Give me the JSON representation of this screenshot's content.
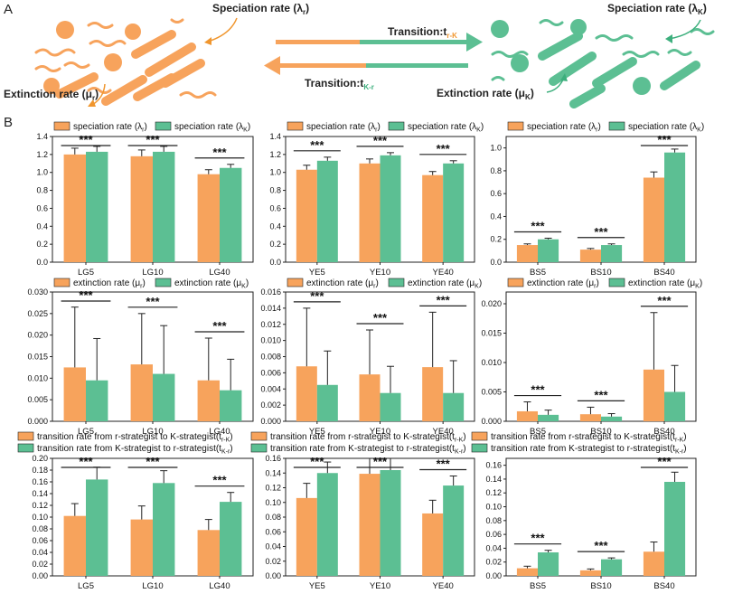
{
  "colors": {
    "r": "#f7a35c",
    "k": "#5cbf93",
    "r_text": "#f0962e",
    "k_text": "#3daf7d",
    "transition_text": "#8d8d8d"
  },
  "panel_a": {
    "letter": "A",
    "speciation_r": "Speciation rate (λ",
    "speciation_r_sub": "r",
    "speciation_k": "Speciation rate (λ",
    "speciation_k_sub": "K",
    "extinction_r": "Extinction rate (μ",
    "extinction_r_sub": "r",
    "extinction_k": "Extinction rate (μ",
    "extinction_k_sub": "K",
    "transition_rk": "Transition:t",
    "transition_rk_sub": "r-K",
    "transition_kr": "Transition:t",
    "transition_kr_sub": "K-r",
    "close_paren": ")"
  },
  "panel_b": {
    "letter": "B"
  },
  "legends": {
    "speciation": [
      {
        "text": "speciation rate (λ",
        "sub": "r",
        "tail": ")"
      },
      {
        "text": "speciation rate (λ",
        "sub": "K",
        "tail": ")"
      }
    ],
    "extinction": [
      {
        "text": "extinction rate (μ",
        "sub": "r",
        "tail": ")"
      },
      {
        "text": "extinction rate (μ",
        "sub": "K",
        "tail": ")"
      }
    ],
    "transition": [
      {
        "text": "transition rate from r-strategist to K-strategist(t",
        "sub": "r-K",
        "tail": ")"
      },
      {
        "text": "transition rate from K-strategist to r-strategist(t",
        "sub": "K-r",
        "tail": ")"
      }
    ]
  },
  "significance": "***",
  "chart_data": [
    {
      "type": "bar",
      "row": 0,
      "col": 0,
      "categories": [
        "LG5",
        "LG10",
        "LG40"
      ],
      "ylim": [
        0.0,
        1.4
      ],
      "yticks": [
        0.0,
        0.2,
        0.4,
        0.6,
        0.8,
        1.0,
        1.2,
        1.4
      ],
      "tick_decimals": 1,
      "series": [
        {
          "name": "speciation rate (λr)",
          "values": [
            1.2,
            1.18,
            0.98
          ],
          "errors": [
            0.07,
            0.07,
            0.05
          ]
        },
        {
          "name": "speciation rate (λK)",
          "values": [
            1.23,
            1.23,
            1.05
          ],
          "errors": [
            0.06,
            0.06,
            0.04
          ]
        }
      ]
    },
    {
      "type": "bar",
      "row": 0,
      "col": 1,
      "categories": [
        "YE5",
        "YE10",
        "YE40"
      ],
      "ylim": [
        0.0,
        1.4
      ],
      "yticks": [
        0.0,
        0.2,
        0.4,
        0.6,
        0.8,
        1.0,
        1.2,
        1.4
      ],
      "tick_decimals": 1,
      "series": [
        {
          "name": "speciation rate (λr)",
          "values": [
            1.03,
            1.1,
            0.97
          ],
          "errors": [
            0.05,
            0.05,
            0.04
          ]
        },
        {
          "name": "speciation rate (λK)",
          "values": [
            1.13,
            1.19,
            1.1
          ],
          "errors": [
            0.04,
            0.03,
            0.03
          ]
        }
      ]
    },
    {
      "type": "bar",
      "row": 0,
      "col": 2,
      "categories": [
        "BS5",
        "BS10",
        "BS40"
      ],
      "ylim": [
        0.0,
        1.1
      ],
      "yticks": [
        0.0,
        0.2,
        0.4,
        0.6,
        0.8,
        1.0
      ],
      "tick_decimals": 1,
      "series": [
        {
          "name": "speciation rate (λr)",
          "values": [
            0.15,
            0.11,
            0.74
          ],
          "errors": [
            0.01,
            0.01,
            0.05
          ]
        },
        {
          "name": "speciation rate (λK)",
          "values": [
            0.2,
            0.15,
            0.96
          ],
          "errors": [
            0.01,
            0.01,
            0.03
          ]
        }
      ]
    },
    {
      "type": "bar",
      "row": 1,
      "col": 0,
      "categories": [
        "LG5",
        "LG10",
        "LG40"
      ],
      "ylim": [
        0.0,
        0.03
      ],
      "yticks": [
        0.0,
        0.005,
        0.01,
        0.015,
        0.02,
        0.025,
        0.03
      ],
      "tick_decimals": 3,
      "series": [
        {
          "name": "extinction rate (μr)",
          "values": [
            0.0125,
            0.0132,
            0.0095
          ],
          "errors": [
            0.014,
            0.0118,
            0.0098
          ]
        },
        {
          "name": "extinction rate (μK)",
          "values": [
            0.0095,
            0.011,
            0.0072
          ],
          "errors": [
            0.0097,
            0.0112,
            0.0072
          ]
        }
      ]
    },
    {
      "type": "bar",
      "row": 1,
      "col": 1,
      "categories": [
        "YE5",
        "YE10",
        "YE40"
      ],
      "ylim": [
        0.0,
        0.016
      ],
      "yticks": [
        0.0,
        0.002,
        0.004,
        0.006,
        0.008,
        0.01,
        0.012,
        0.014,
        0.016
      ],
      "tick_decimals": 3,
      "series": [
        {
          "name": "extinction rate (μr)",
          "values": [
            0.0068,
            0.0058,
            0.0067
          ],
          "errors": [
            0.0072,
            0.0055,
            0.0068
          ]
        },
        {
          "name": "extinction rate (μK)",
          "values": [
            0.0045,
            0.0035,
            0.0035
          ],
          "errors": [
            0.0042,
            0.0033,
            0.004
          ]
        }
      ]
    },
    {
      "type": "bar",
      "row": 1,
      "col": 2,
      "categories": [
        "BS5",
        "BS10",
        "BS40"
      ],
      "ylim": [
        0.0,
        0.022
      ],
      "yticks": [
        0.0,
        0.005,
        0.01,
        0.015,
        0.02
      ],
      "tick_decimals": 3,
      "series": [
        {
          "name": "extinction rate (μr)",
          "values": [
            0.0017,
            0.0012,
            0.0088
          ],
          "errors": [
            0.0016,
            0.0012,
            0.0097
          ]
        },
        {
          "name": "extinction rate (μK)",
          "values": [
            0.0011,
            0.0008,
            0.005
          ],
          "errors": [
            0.0008,
            0.0005,
            0.0045
          ]
        }
      ]
    },
    {
      "type": "bar",
      "row": 2,
      "col": 0,
      "categories": [
        "LG5",
        "LG10",
        "LG40"
      ],
      "ylim": [
        0.0,
        0.2
      ],
      "yticks": [
        0.0,
        0.02,
        0.04,
        0.06,
        0.08,
        0.1,
        0.12,
        0.14,
        0.16,
        0.18,
        0.2
      ],
      "tick_decimals": 2,
      "series": [
        {
          "name": "transition rate from r-strategist to K-strategist(tr-K)",
          "values": [
            0.102,
            0.096,
            0.078
          ],
          "errors": [
            0.021,
            0.023,
            0.018
          ]
        },
        {
          "name": "transition rate from K-strategist to r-strategist(tK-r)",
          "values": [
            0.164,
            0.158,
            0.126
          ],
          "errors": [
            0.021,
            0.021,
            0.016
          ]
        }
      ]
    },
    {
      "type": "bar",
      "row": 2,
      "col": 1,
      "categories": [
        "YE5",
        "YE10",
        "YE40"
      ],
      "ylim": [
        0.0,
        0.16
      ],
      "yticks": [
        0.0,
        0.02,
        0.04,
        0.06,
        0.08,
        0.1,
        0.12,
        0.14,
        0.16
      ],
      "tick_decimals": 2,
      "series": [
        {
          "name": "transition rate from r-strategist to K-strategist(tr-K)",
          "values": [
            0.106,
            0.139,
            0.085
          ],
          "errors": [
            0.02,
            0.023,
            0.018
          ]
        },
        {
          "name": "transition rate from K-strategist to r-strategist(tK-r)",
          "values": [
            0.14,
            0.144,
            0.123
          ],
          "errors": [
            0.015,
            0.02,
            0.013
          ]
        }
      ]
    },
    {
      "type": "bar",
      "row": 2,
      "col": 2,
      "categories": [
        "BS5",
        "BS10",
        "BS40"
      ],
      "ylim": [
        0.0,
        0.17
      ],
      "yticks": [
        0.0,
        0.02,
        0.04,
        0.06,
        0.08,
        0.1,
        0.12,
        0.14,
        0.16
      ],
      "tick_decimals": 2,
      "series": [
        {
          "name": "transition rate from r-strategist to K-strategist(tr-K)",
          "values": [
            0.011,
            0.008,
            0.035
          ],
          "errors": [
            0.003,
            0.002,
            0.014
          ]
        },
        {
          "name": "transition rate from K-strategist to r-strategist(tK-r)",
          "values": [
            0.034,
            0.024,
            0.136
          ],
          "errors": [
            0.003,
            0.002,
            0.014
          ]
        }
      ]
    }
  ]
}
